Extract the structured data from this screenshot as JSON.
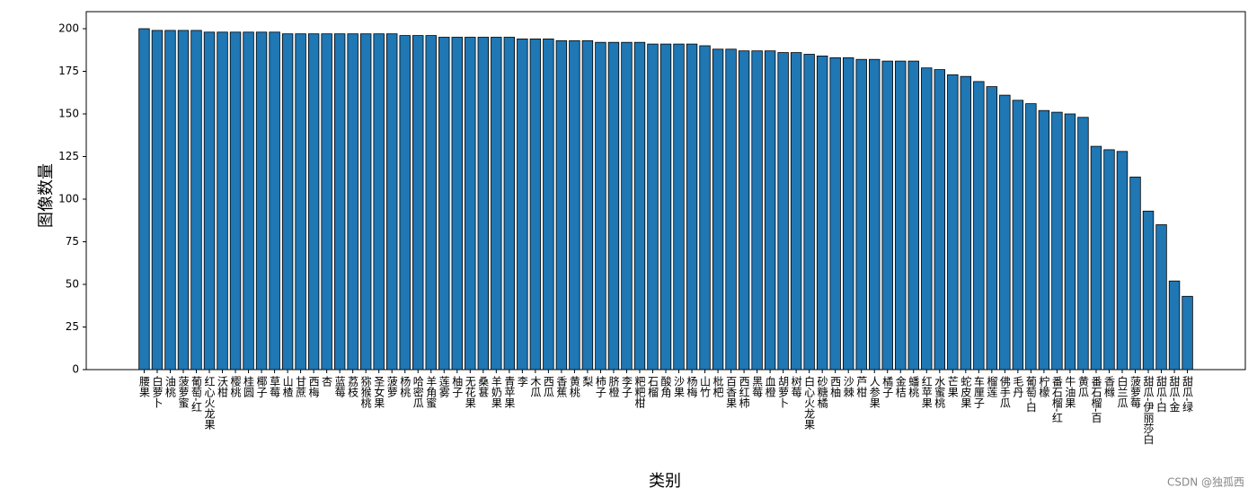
{
  "chart_data": {
    "type": "bar",
    "xlabel": "类别",
    "ylabel": "图像数量",
    "watermark": "CSDN @独孤西",
    "color": "#1f77b4",
    "categories": [
      "腰果",
      "白萝卜",
      "油桃",
      "菠萝蜜",
      "葡萄-红",
      "红心火龙果",
      "沃柑",
      "樱桃",
      "桂圆",
      "椰子",
      "草莓",
      "山楂",
      "甘蔗",
      "西梅",
      "杏",
      "蓝莓",
      "荔枝",
      "猕猴桃",
      "圣女果",
      "菠萝",
      "杨桃",
      "哈密瓜",
      "羊角蜜",
      "莲雾",
      "柚子",
      "无花果",
      "桑葚",
      "羊奶果",
      "青苹果",
      "李",
      "木瓜",
      "西瓜",
      "香蕉",
      "黄桃",
      "梨",
      "柿子",
      "脐橙",
      "李子",
      "粑粑柑",
      "石榴",
      "酸角",
      "沙果",
      "杨梅",
      "山竹",
      "枇杷",
      "百香果",
      "西红柿",
      "黑莓",
      "血橙",
      "胡萝卜",
      "树莓",
      "白心火龙果",
      "砂糖橘",
      "西柚",
      "沙棘",
      "芦柑",
      "人参果",
      "橘子",
      "金桔",
      "蟠桃",
      "红苹果",
      "水蜜桃",
      "芒果",
      "蛇皮果",
      "车厘子",
      "榴莲",
      "佛手瓜",
      "毛丹",
      "葡萄-白",
      "柠檬",
      "番石榴-红",
      "牛油果",
      "黄瓜",
      "番石榴-百",
      "香橼",
      "白兰瓜",
      "菠萝莓",
      "甜瓜-伊丽莎白",
      "甜瓜-白",
      "甜瓜-金",
      "甜瓜-绿"
    ],
    "values": [
      200,
      199,
      199,
      199,
      199,
      198,
      198,
      198,
      198,
      198,
      198,
      197,
      197,
      197,
      197,
      197,
      197,
      197,
      197,
      197,
      196,
      196,
      196,
      195,
      195,
      195,
      195,
      195,
      195,
      194,
      194,
      194,
      193,
      193,
      193,
      192,
      192,
      192,
      192,
      191,
      191,
      191,
      191,
      190,
      188,
      188,
      187,
      187,
      187,
      186,
      186,
      185,
      184,
      183,
      183,
      182,
      182,
      181,
      181,
      181,
      177,
      176,
      173,
      172,
      169,
      166,
      161,
      158,
      156,
      152,
      151,
      150,
      148,
      131,
      129,
      128,
      113,
      93,
      85,
      52,
      43
    ],
    "ylim": [
      0,
      210
    ],
    "yticks": [
      0,
      25,
      50,
      75,
      100,
      125,
      150,
      175,
      200
    ]
  }
}
